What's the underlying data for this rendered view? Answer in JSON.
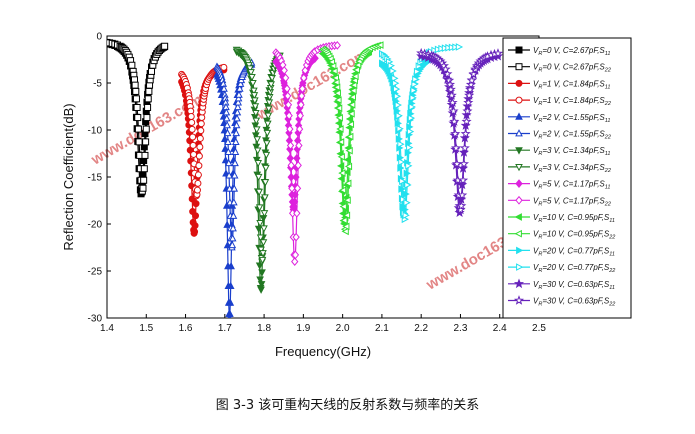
{
  "caption": "图 3-3 该可重构天线的反射系数与频率的关系",
  "watermarks": [
    "www.doc163.com",
    "www.doc163.com",
    "www.doc163.com"
  ],
  "chart_data": {
    "type": "line",
    "title": "",
    "xlabel": "Frequency(GHz)",
    "ylabel": "Reflection Coefficient(dB)",
    "xlim": [
      1.4,
      2.5
    ],
    "ylim": [
      -30,
      0
    ],
    "xticks": [
      "1.4",
      "1.5",
      "1.6",
      "1.7",
      "1.8",
      "1.9",
      "2.0",
      "2.1",
      "2.2",
      "2.3",
      "2.4",
      "2.5"
    ],
    "yticks": [
      "0",
      "-5",
      "-10",
      "-15",
      "-20",
      "-25",
      "-30"
    ],
    "grid": false,
    "legend_position": "right",
    "series": [
      {
        "name": "V_R=0 V, C=2.67pF,S11",
        "vr": "0",
        "cap": "2.67pF",
        "s": "11",
        "color": "#000000",
        "marker": "square",
        "filled": true,
        "f0": 1.487,
        "depth": -16.8,
        "bw": 0.012,
        "start": 1.4,
        "end": 1.55,
        "base": -0.5
      },
      {
        "name": "V_R=0 V, C=2.67pF,S22",
        "vr": "0",
        "cap": "2.67pF",
        "s": "22",
        "color": "#000000",
        "marker": "square",
        "filled": false,
        "f0": 1.49,
        "depth": -16.5,
        "bw": 0.012,
        "start": 1.4,
        "end": 1.55,
        "base": -0.4
      },
      {
        "name": "V_R=1 V, C=1.84pF,S11",
        "vr": "1",
        "cap": "1.84pF",
        "s": "11",
        "color": "#dd1111",
        "marker": "circle",
        "filled": true,
        "f0": 1.622,
        "depth": -21.0,
        "bw": 0.01,
        "start": 1.59,
        "end": 1.7,
        "base": -3.3
      },
      {
        "name": "V_R=1 V, C=1.84pF,S22",
        "vr": "1",
        "cap": "1.84pF",
        "s": "22",
        "color": "#dd1111",
        "marker": "circle",
        "filled": false,
        "f0": 1.628,
        "depth": -17.0,
        "bw": 0.011,
        "start": 1.59,
        "end": 1.7,
        "base": -3.0
      },
      {
        "name": "V_R=2 V, C=1.55pF,S11",
        "vr": "2",
        "cap": "1.55pF",
        "s": "11",
        "color": "#1a3fcc",
        "marker": "triangle",
        "filled": true,
        "f0": 1.712,
        "depth": -30.0,
        "bw": 0.008,
        "start": 1.68,
        "end": 1.77,
        "base": -2.5
      },
      {
        "name": "V_R=2 V, C=1.55pF,S22",
        "vr": "2",
        "cap": "1.55pF",
        "s": "22",
        "color": "#1a3fcc",
        "marker": "triangle",
        "filled": false,
        "f0": 1.718,
        "depth": -22.5,
        "bw": 0.009,
        "start": 1.68,
        "end": 1.77,
        "base": -2.2
      },
      {
        "name": "V_R=3 V, C=1.34pF,S11",
        "vr": "3",
        "cap": "1.34pF",
        "s": "11",
        "color": "#227722",
        "marker": "tridown",
        "filled": true,
        "f0": 1.792,
        "depth": -27.0,
        "bw": 0.01,
        "start": 1.73,
        "end": 1.84,
        "base": -1.0
      },
      {
        "name": "V_R=3 V, C=1.34pF,S22",
        "vr": "3",
        "cap": "1.34pF",
        "s": "22",
        "color": "#227722",
        "marker": "tridown",
        "filled": false,
        "f0": 1.795,
        "depth": -24.0,
        "bw": 0.011,
        "start": 1.73,
        "end": 1.84,
        "base": -0.8
      },
      {
        "name": "V_R=5 V, C=1.17pF,S11",
        "vr": "5",
        "cap": "1.17pF",
        "s": "11",
        "color": "#dd22dd",
        "marker": "diamond",
        "filled": true,
        "f0": 1.875,
        "depth": -18.5,
        "bw": 0.012,
        "start": 1.83,
        "end": 1.93,
        "base": -1.6
      },
      {
        "name": "V_R=5 V, C=1.17pF,S22",
        "vr": "5",
        "cap": "1.17pF",
        "s": "22",
        "color": "#dd22dd",
        "marker": "diamond",
        "filled": false,
        "f0": 1.878,
        "depth": -24.0,
        "bw": 0.01,
        "start": 1.83,
        "end": 1.99,
        "base": -0.8
      },
      {
        "name": "V_R=10 V, C=0.95pF,S11",
        "vr": "10",
        "cap": "0.95pF",
        "s": "11",
        "color": "#33dd33",
        "marker": "tri-left",
        "filled": true,
        "f0": 2.005,
        "depth": -20.0,
        "bw": 0.012,
        "start": 1.95,
        "end": 2.07,
        "base": -1.0
      },
      {
        "name": "V_R=10 V, C=0.95pF,S22",
        "vr": "10",
        "cap": "0.95pF",
        "s": "22",
        "color": "#33dd33",
        "marker": "tri-left",
        "filled": false,
        "f0": 2.008,
        "depth": -20.8,
        "bw": 0.012,
        "start": 1.95,
        "end": 2.1,
        "base": -0.6
      },
      {
        "name": "V_R=20 V, C=0.77pF,S11",
        "vr": "20",
        "cap": "0.77pF",
        "s": "11",
        "color": "#22e0ee",
        "marker": "tri-right",
        "filled": true,
        "f0": 2.155,
        "depth": -19.0,
        "bw": 0.013,
        "start": 2.1,
        "end": 2.22,
        "base": -2.0
      },
      {
        "name": "V_R=20 V, C=0.77pF,S22",
        "vr": "20",
        "cap": "0.77pF",
        "s": "22",
        "color": "#22e0ee",
        "marker": "tri-right",
        "filled": false,
        "f0": 2.158,
        "depth": -19.5,
        "bw": 0.013,
        "start": 2.1,
        "end": 2.3,
        "base": -1.0
      },
      {
        "name": "V_R=30 V, C=0.63pF,S11",
        "vr": "30",
        "cap": "0.63pF",
        "s": "11",
        "color": "#6622bb",
        "marker": "star",
        "filled": true,
        "f0": 2.298,
        "depth": -18.8,
        "bw": 0.014,
        "start": 2.2,
        "end": 2.4,
        "base": -1.8
      },
      {
        "name": "V_R=30 V, C=0.63pF,S22",
        "vr": "30",
        "cap": "0.63pF",
        "s": "22",
        "color": "#6622bb",
        "marker": "star",
        "filled": false,
        "f0": 2.3,
        "depth": -18.5,
        "bw": 0.014,
        "start": 2.2,
        "end": 2.4,
        "base": -1.5
      }
    ]
  }
}
